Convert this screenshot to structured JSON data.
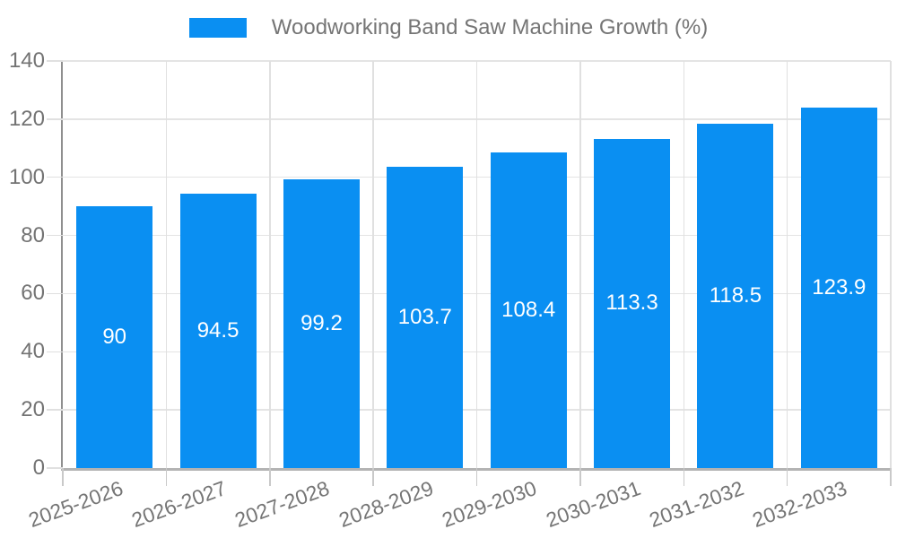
{
  "legend": {
    "label": "Woodworking Band Saw Machine Growth (%)"
  },
  "chart_data": {
    "type": "bar",
    "title": "Woodworking Band Saw Machine Growth (%)",
    "categories": [
      "2025-2026",
      "2026-2027",
      "2027-2028",
      "2028-2029",
      "2029-2030",
      "2030-2031",
      "2031-2032",
      "2032-2033"
    ],
    "values": [
      90,
      94.5,
      99.2,
      103.7,
      108.4,
      113.3,
      118.5,
      123.9
    ],
    "bar_labels": [
      "90",
      "94.5",
      "99.2",
      "103.7",
      "108.4",
      "113.3",
      "118.5",
      "123.9"
    ],
    "xlabel": "",
    "ylabel": "",
    "ylim": [
      0,
      140
    ],
    "yticks": [
      0,
      20,
      40,
      60,
      80,
      100,
      120,
      140
    ],
    "grid": true,
    "legend_position": "top",
    "x_label_rotation_deg": -20
  },
  "colors": {
    "bar": "#0a8ff2",
    "bar_label": "#ffffff",
    "grid": "#e2e2e2",
    "axis_y": "#8f8f8f",
    "axis_x": "#b3b3b3",
    "tick_text": "#737373",
    "legend_text": "#757575",
    "background": "#ffffff"
  }
}
